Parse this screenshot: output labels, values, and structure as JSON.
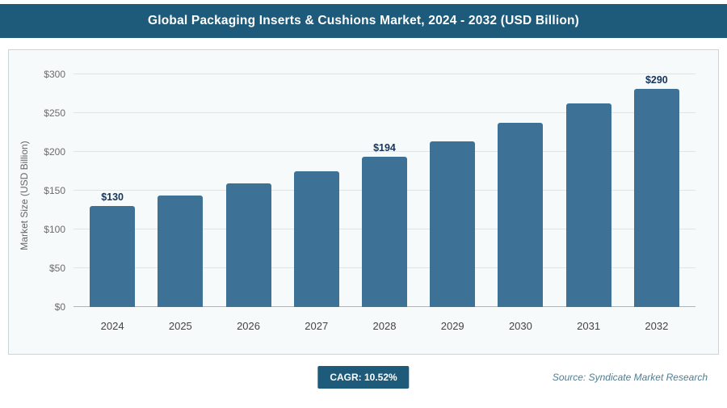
{
  "header": {
    "title": "Global Packaging Inserts & Cushions Market, 2024 - 2032 (USD Billion)"
  },
  "chart_data": {
    "type": "bar",
    "title": "Global Packaging Inserts & Cushions Market, 2024 - 2032 (USD Billion)",
    "categories": [
      "2024",
      "2025",
      "2026",
      "2027",
      "2028",
      "2029",
      "2030",
      "2031",
      "2032"
    ],
    "values": [
      130,
      144,
      159,
      175,
      194,
      214,
      237,
      262,
      290
    ],
    "bar_labels": [
      "$130",
      "",
      "",
      "",
      "$194",
      "",
      "",
      "",
      "$290"
    ],
    "xlabel": "",
    "ylabel": "Market Size (USD Billion)",
    "ylim": [
      0,
      300
    ],
    "yticks": [
      0,
      50,
      100,
      150,
      200,
      250,
      300
    ],
    "ytick_labels": [
      "$0",
      "$50",
      "$100",
      "$150",
      "$200",
      "$250",
      "$300"
    ],
    "grid": true,
    "legend": "none",
    "bar_color": "#3d7296"
  },
  "footer": {
    "cagr": "CAGR: 10.52%",
    "source": "Source: Syndicate Market Research"
  },
  "colors": {
    "accent": "#1e5b7a",
    "bar": "#3d7296",
    "value_label": "#16355c"
  }
}
